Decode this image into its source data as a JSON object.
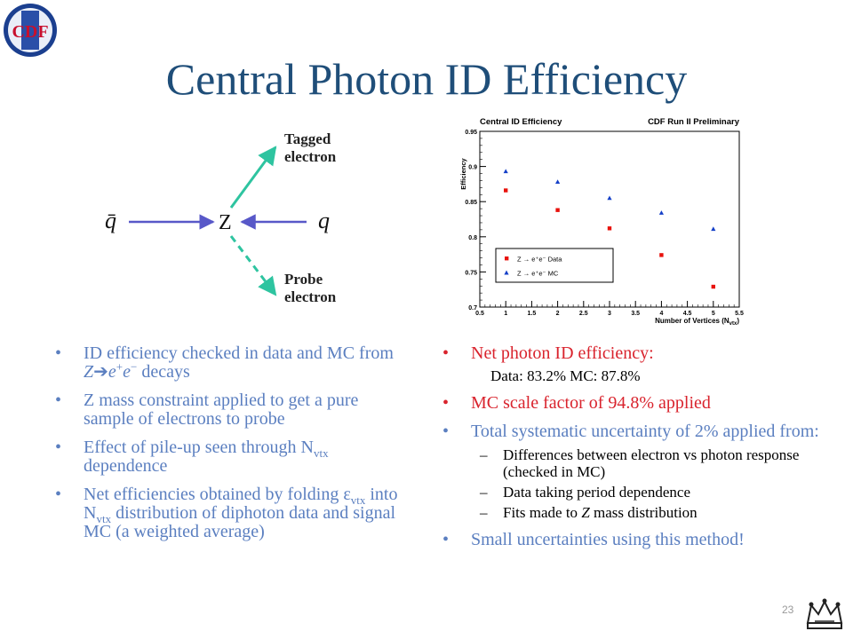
{
  "slide": {
    "title": "Central Photon ID Efficiency",
    "slide_number": "23"
  },
  "logo": {
    "text": "CDF"
  },
  "diagram": {
    "qbar": "q̄",
    "z": "Z",
    "q": "q",
    "tagged_line1": "Tagged",
    "tagged_line2": "electron",
    "probe_line1": "Probe",
    "probe_line2": "electron"
  },
  "left_bullets": {
    "b1_text": "ID efficiency checked in data and MC from ",
    "b1_z": "Z",
    "b1_arrow": "➔",
    "b1_ee": "e",
    "b1_plus": "+",
    "b1_e2": "e",
    "b1_minus": "−",
    "b1_tail": " decays",
    "b2": "Z mass constraint applied to get a pure sample of electrons to probe",
    "b3_text": "Effect of pile-up seen through N",
    "b3_sub": "vtx",
    "b3_tail": " dependence",
    "b4_a": "Net efficiencies obtained by folding ",
    "b4_eps": "ε",
    "b4_sub1": "vtx",
    "b4_b": " into N",
    "b4_sub2": "vtx",
    "b4_c": " distribution of diphoton data and signal MC (a weighted average)"
  },
  "right_bullets": {
    "b1": "Net photon ID efficiency:",
    "data_line": "Data: 83.2%       MC:  87.8%",
    "b2": "MC scale factor of 94.8% applied",
    "b3": "Total systematic uncertainty of 2% applied from:",
    "sub1": "Differences between electron vs photon response (checked in MC)",
    "sub2": "Data taking period dependence",
    "sub3_a": "Fits made to ",
    "sub3_z": "Z",
    "sub3_b": " mass distribution",
    "b4": "Small uncertainties using this method!"
  },
  "chart_data": {
    "type": "scatter",
    "title": "Central ID Efficiency",
    "subtitle": "CDF Run II Preliminary",
    "xlabel": "Number of Vertices (N",
    "xlabel_sub": "vtx",
    "xlabel_end": ")",
    "ylabel": "Efficiency",
    "xlim": [
      0.5,
      5.5
    ],
    "ylim": [
      0.7,
      0.95
    ],
    "xticks": [
      "0.5",
      "1",
      "1.5",
      "2",
      "2.5",
      "3",
      "3.5",
      "4",
      "4.5",
      "5",
      "5.5"
    ],
    "yticks": [
      "0.7",
      "0.75",
      "0.8",
      "0.85",
      "0.9",
      "0.95"
    ],
    "series": [
      {
        "name": "Z → e⁺e⁻ Data",
        "color": "#e8120c",
        "marker": "square",
        "x": [
          1,
          2,
          3,
          4,
          5
        ],
        "y": [
          0.866,
          0.838,
          0.812,
          0.774,
          0.729
        ]
      },
      {
        "name": "Z → e⁺e⁻ MC",
        "color": "#1540c8",
        "marker": "triangle",
        "x": [
          1,
          2,
          3,
          4,
          5
        ],
        "y": [
          0.893,
          0.878,
          0.855,
          0.834,
          0.811
        ]
      }
    ],
    "legend_position": "bottom-left"
  }
}
